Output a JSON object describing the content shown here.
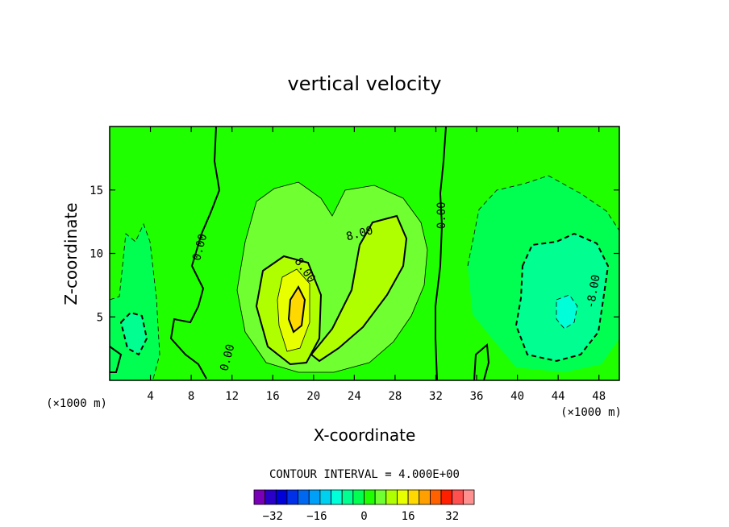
{
  "chart_data": {
    "type": "contour",
    "title": "vertical velocity",
    "xlabel": "X-coordinate",
    "ylabel": "Z-coordinate",
    "x_unit": "(×1000 m)",
    "z_unit": "(×1000 m)",
    "xlim": [
      0,
      50
    ],
    "ylim": [
      0,
      20
    ],
    "x_ticks": [
      4,
      8,
      12,
      16,
      20,
      24,
      28,
      32,
      36,
      40,
      44,
      48
    ],
    "y_ticks": [
      5,
      10,
      15
    ],
    "contour_interval_text": "CONTOUR INTERVAL = 4.000E+00",
    "contour_labels": [
      {
        "text": "0.00",
        "x": 8.8,
        "z": 10.5,
        "angle": -75
      },
      {
        "text": "0.00",
        "x": 11.5,
        "z": 1.8,
        "angle": -75
      },
      {
        "text": "0.00",
        "x": 32.5,
        "z": 13.0,
        "angle": -90
      },
      {
        "text": "8.00",
        "x": 19.2,
        "z": 8.7,
        "angle": 55
      },
      {
        "text": "8.00",
        "x": 24.5,
        "z": 11.6,
        "angle": -15
      },
      {
        "text": "-8.00",
        "x": 47.4,
        "z": 7.0,
        "angle": -80
      }
    ],
    "colorbar": {
      "tick_labels": [
        "-32",
        "-16",
        "0",
        "16",
        "32"
      ],
      "tick_values": [
        -32,
        -16,
        0,
        16,
        32
      ],
      "range": [
        -40,
        40
      ],
      "levels": [
        -40,
        -36,
        -32,
        -28,
        -24,
        -20,
        -16,
        -12,
        -8,
        -4,
        0,
        4,
        8,
        12,
        16,
        20,
        24,
        28,
        32,
        36,
        40
      ],
      "colors": [
        "#7a00b8",
        "#2a00c8",
        "#0000d8",
        "#0030e8",
        "#0068f0",
        "#00a0f8",
        "#00d0f0",
        "#00ffd8",
        "#00ff90",
        "#00ff50",
        "#20ff00",
        "#70ff30",
        "#b0ff00",
        "#e8ff00",
        "#ffd800",
        "#ffa000",
        "#ff6000",
        "#ff2000",
        "#ff5050",
        "#ff9090"
      ]
    },
    "background_color": "#20ff00"
  }
}
